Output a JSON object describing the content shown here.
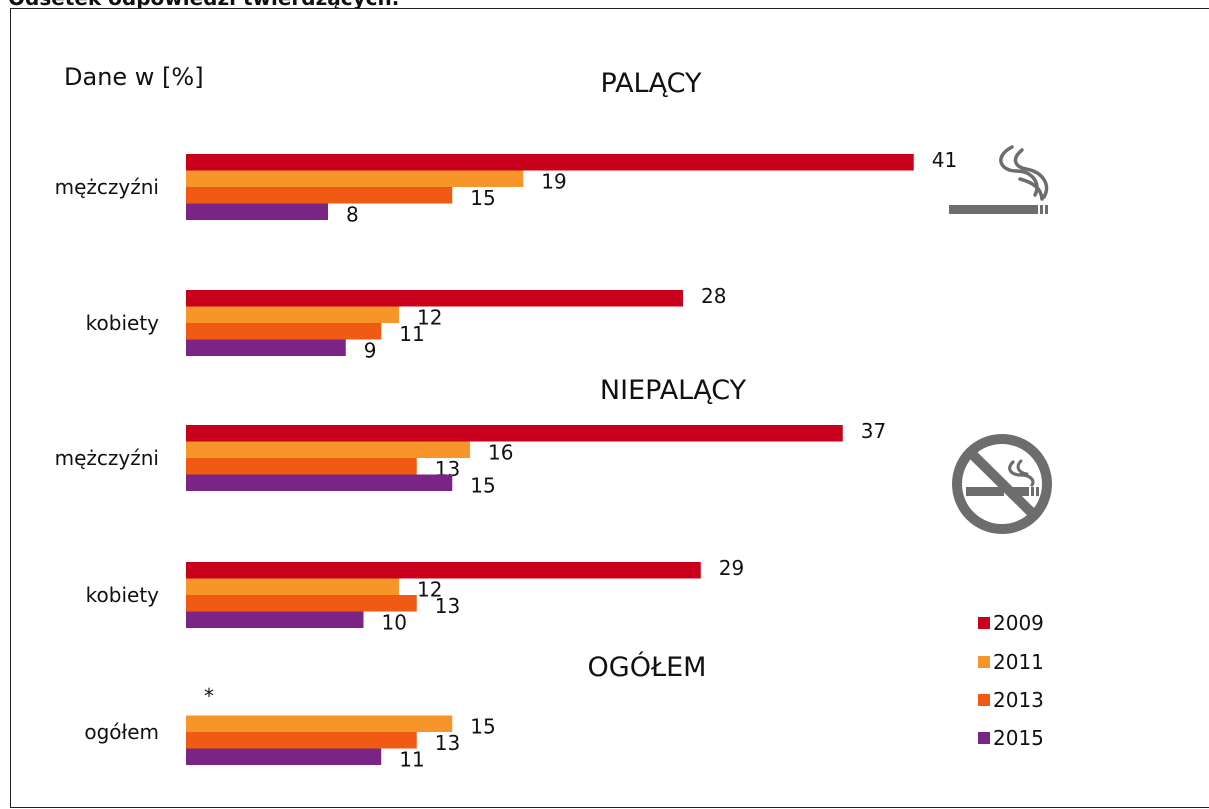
{
  "page_title": "Odsetek odpowiedzi twierdzących.",
  "unit_note": "Dane w [%]",
  "icons": {
    "smoking": "cigarette-icon",
    "no_smoking": "no-smoking-icon",
    "color": "#6d6d6d"
  },
  "chart_data": {
    "type": "bar",
    "orientation": "horizontal",
    "unit": "%",
    "xlim": [
      0,
      41
    ],
    "grid": false,
    "legend_position": "bottom-right",
    "series": [
      {
        "name": "2009",
        "color": "#c8001b"
      },
      {
        "name": "2011",
        "color": "#f7952a"
      },
      {
        "name": "2013",
        "color": "#f15a12"
      },
      {
        "name": "2015",
        "color": "#7a2585"
      }
    ],
    "sections": [
      {
        "title": "PALĄCY",
        "groups": [
          {
            "label": "mężczyźni",
            "values": [
              41,
              19,
              15,
              8
            ],
            "value_labels": [
              "41",
              "19",
              "15",
              "8"
            ]
          },
          {
            "label": "kobiety",
            "values": [
              28,
              12,
              11,
              9
            ],
            "value_labels": [
              "28",
              "12",
              "11",
              "9"
            ]
          }
        ]
      },
      {
        "title": "NIEPALĄCY",
        "groups": [
          {
            "label": "mężczyźni",
            "values": [
              37,
              16,
              13,
              15
            ],
            "value_labels": [
              "37",
              "16",
              "13",
              "15"
            ]
          },
          {
            "label": "kobiety",
            "values": [
              29,
              12,
              13,
              10
            ],
            "value_labels": [
              "29",
              "12",
              "13",
              "10"
            ]
          }
        ]
      },
      {
        "title": "OGÓŁEM",
        "groups": [
          {
            "label": "ogółem",
            "values": [
              null,
              15,
              13,
              11
            ],
            "value_labels": [
              "*",
              "15",
              "13",
              "11"
            ]
          }
        ]
      }
    ]
  }
}
